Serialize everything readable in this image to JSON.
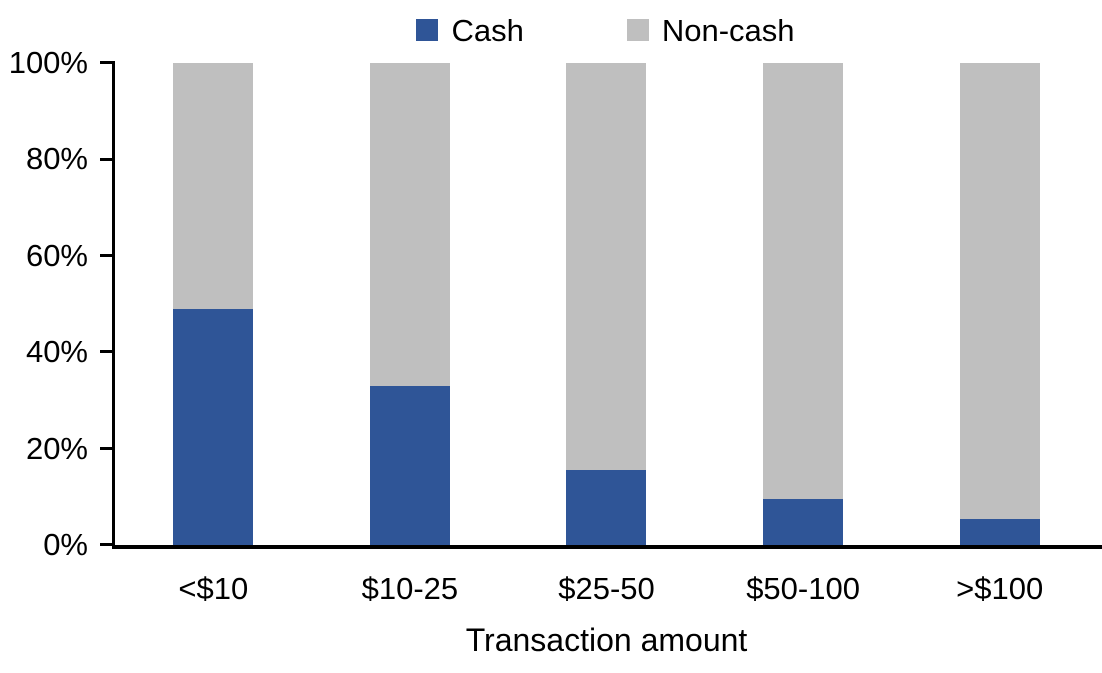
{
  "chart_data": {
    "type": "bar",
    "variant": "stacked-100-percent",
    "title": "",
    "xlabel": "Transaction amount",
    "ylabel": "",
    "categories": [
      "<$10",
      "$10-25",
      "$25-50",
      "$50-100",
      ">$100"
    ],
    "series": [
      {
        "name": "Cash",
        "color": "#2F5597",
        "values": [
          49,
          33,
          15.5,
          9.5,
          5.5
        ]
      },
      {
        "name": "Non-cash",
        "color": "#BFBFBF",
        "values": [
          51,
          67,
          84.5,
          90.5,
          94.5
        ]
      }
    ],
    "ylim": [
      0,
      100
    ],
    "yticks": [
      0,
      20,
      40,
      60,
      80,
      100
    ],
    "ytick_labels": [
      "0%",
      "20%",
      "40%",
      "60%",
      "80%",
      "100%"
    ],
    "legend_position": "top-center",
    "grid": false,
    "background_color": "#FFFFFF",
    "axis_color": "#000000"
  }
}
